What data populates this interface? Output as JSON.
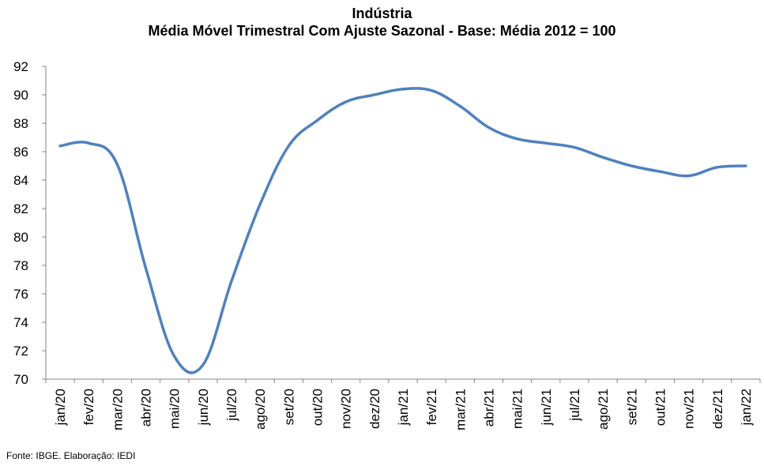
{
  "chart_data": {
    "type": "line",
    "title": "Indústria",
    "subtitle": "Média Móvel Trimestral Com Ajuste Sazonal - Base: Média 2012 = 100",
    "categories": [
      "jan/20",
      "fev/20",
      "mar/20",
      "abr/20",
      "mai/20",
      "jun/20",
      "jul/20",
      "ago/20",
      "set/20",
      "out/20",
      "nov/20",
      "dez/20",
      "jan/21",
      "fev/21",
      "mar/21",
      "abr/21",
      "mai/21",
      "jun/21",
      "jul/21",
      "ago/21",
      "set/21",
      "out/21",
      "nov/21",
      "dez/21",
      "jan/22"
    ],
    "yticks": [
      "70",
      "72",
      "74",
      "76",
      "78",
      "80",
      "82",
      "84",
      "86",
      "88",
      "90",
      "92"
    ],
    "ylim": [
      70,
      92
    ],
    "series": [
      {
        "values": [
          86.4,
          86.6,
          85.1,
          77.8,
          71.6,
          71.0,
          76.9,
          82.3,
          86.4,
          88.2,
          89.5,
          90.0,
          90.4,
          90.3,
          89.2,
          87.7,
          86.9,
          86.6,
          86.3,
          85.6,
          85.0,
          84.6,
          84.3,
          84.9,
          85.0
        ],
        "color": "#4f81bd"
      }
    ],
    "grid": false,
    "legend": "none"
  },
  "source": "Fonte: IBGE. Elaboração: IEDI"
}
